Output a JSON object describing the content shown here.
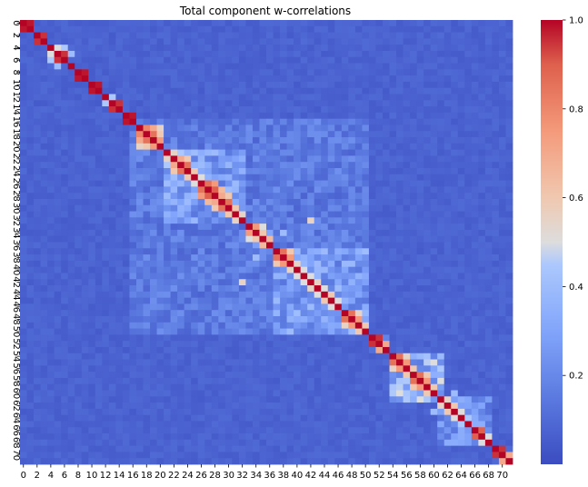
{
  "chart_data": {
    "type": "heatmap",
    "title": "Total component w-correlations",
    "xlabel": "",
    "ylabel": "",
    "n": 72,
    "x_tick_labels": [
      "0",
      "2",
      "4",
      "6",
      "8",
      "10",
      "12",
      "14",
      "16",
      "18",
      "20",
      "22",
      "24",
      "26",
      "28",
      "30",
      "32",
      "34",
      "36",
      "38",
      "40",
      "42",
      "44",
      "46",
      "48",
      "50",
      "52",
      "54",
      "56",
      "58",
      "60",
      "62",
      "64",
      "66",
      "68",
      "70"
    ],
    "y_tick_labels": [
      "0",
      "2",
      "4",
      "6",
      "8",
      "10",
      "12",
      "14",
      "16",
      "18",
      "20",
      "22",
      "24",
      "26",
      "28",
      "30",
      "32",
      "34",
      "36",
      "38",
      "40",
      "42",
      "44",
      "46",
      "48",
      "50",
      "52",
      "54",
      "56",
      "58",
      "60",
      "62",
      "64",
      "66",
      "68",
      "70"
    ],
    "colorbar": {
      "colormap": "coolwarm",
      "range": [
        0.0,
        1.0
      ],
      "tick_labels": [
        "0.2",
        "0.4",
        "0.6",
        "0.8",
        "1.0"
      ],
      "tick_values": [
        0.2,
        0.4,
        0.6,
        0.8,
        1.0
      ]
    },
    "diagonal": 1.0,
    "pairs_high": [
      [
        0,
        1,
        0.98
      ],
      [
        2,
        3,
        0.95
      ],
      [
        4,
        5,
        0.5
      ],
      [
        5,
        6,
        0.95
      ],
      [
        4,
        6,
        0.45
      ],
      [
        5,
        7,
        0.4
      ],
      [
        8,
        9,
        0.98
      ],
      [
        10,
        11,
        0.98
      ],
      [
        12,
        13,
        0.45
      ],
      [
        13,
        14,
        0.95
      ],
      [
        15,
        16,
        0.98
      ],
      [
        17,
        18,
        0.8
      ],
      [
        18,
        19,
        0.85
      ],
      [
        17,
        19,
        0.7
      ],
      [
        19,
        20,
        0.75
      ],
      [
        18,
        20,
        0.6
      ],
      [
        17,
        20,
        0.55
      ],
      [
        21,
        22,
        0.55
      ],
      [
        22,
        23,
        0.7
      ],
      [
        23,
        24,
        0.85
      ],
      [
        21,
        23,
        0.45
      ],
      [
        22,
        24,
        0.6
      ],
      [
        24,
        25,
        0.6
      ],
      [
        25,
        26,
        0.5
      ],
      [
        26,
        27,
        0.85
      ],
      [
        27,
        28,
        0.9
      ],
      [
        26,
        28,
        0.75
      ],
      [
        28,
        29,
        0.7
      ],
      [
        29,
        30,
        0.85
      ],
      [
        28,
        30,
        0.6
      ],
      [
        27,
        29,
        0.65
      ],
      [
        30,
        31,
        0.6
      ],
      [
        31,
        32,
        0.55
      ],
      [
        33,
        34,
        0.75
      ],
      [
        34,
        35,
        0.6
      ],
      [
        35,
        36,
        0.65
      ],
      [
        33,
        35,
        0.5
      ],
      [
        37,
        38,
        0.85
      ],
      [
        38,
        39,
        0.75
      ],
      [
        37,
        39,
        0.6
      ],
      [
        39,
        40,
        0.55
      ],
      [
        40,
        41,
        0.5
      ],
      [
        41,
        42,
        0.5
      ],
      [
        42,
        43,
        0.55
      ],
      [
        43,
        44,
        0.5
      ],
      [
        44,
        45,
        0.6
      ],
      [
        45,
        46,
        0.5
      ],
      [
        47,
        48,
        0.85
      ],
      [
        48,
        49,
        0.75
      ],
      [
        47,
        49,
        0.55
      ],
      [
        49,
        50,
        0.6
      ],
      [
        51,
        52,
        0.95
      ],
      [
        52,
        53,
        0.7
      ],
      [
        54,
        55,
        0.85
      ],
      [
        55,
        56,
        0.75
      ],
      [
        54,
        56,
        0.55
      ],
      [
        56,
        57,
        0.6
      ],
      [
        57,
        58,
        0.85
      ],
      [
        58,
        59,
        0.75
      ],
      [
        57,
        59,
        0.6
      ],
      [
        59,
        60,
        0.6
      ],
      [
        61,
        62,
        0.55
      ],
      [
        62,
        63,
        0.6
      ],
      [
        63,
        64,
        0.5
      ],
      [
        64,
        65,
        0.45
      ],
      [
        66,
        67,
        0.9
      ],
      [
        67,
        68,
        0.5
      ],
      [
        69,
        70,
        0.95
      ],
      [
        70,
        71,
        0.7
      ],
      [
        39,
        42,
        0.3
      ],
      [
        38,
        41,
        0.35
      ],
      [
        34,
        38,
        0.4
      ],
      [
        32,
        42,
        0.55
      ],
      [
        22,
        31,
        0.3
      ],
      [
        21,
        28,
        0.4
      ],
      [
        55,
        60,
        0.5
      ],
      [
        56,
        61,
        0.45
      ],
      [
        58,
        61,
        0.5
      ],
      [
        60,
        63,
        0.4
      ]
    ],
    "blocks": [
      {
        "range": [
          17,
          20
        ],
        "level": 0.35
      },
      {
        "range": [
          21,
          32
        ],
        "level": 0.3
      },
      {
        "range": [
          33,
          36
        ],
        "level": 0.28
      },
      {
        "range": [
          37,
          50
        ],
        "level": 0.3
      },
      {
        "range": [
          51,
          53
        ],
        "level": 0.25
      },
      {
        "range": [
          54,
          61
        ],
        "level": 0.35
      },
      {
        "range": [
          61,
          68
        ],
        "level": 0.25
      },
      {
        "range": [
          16,
          50
        ],
        "level": 0.17
      }
    ],
    "background_level": 0.05
  }
}
